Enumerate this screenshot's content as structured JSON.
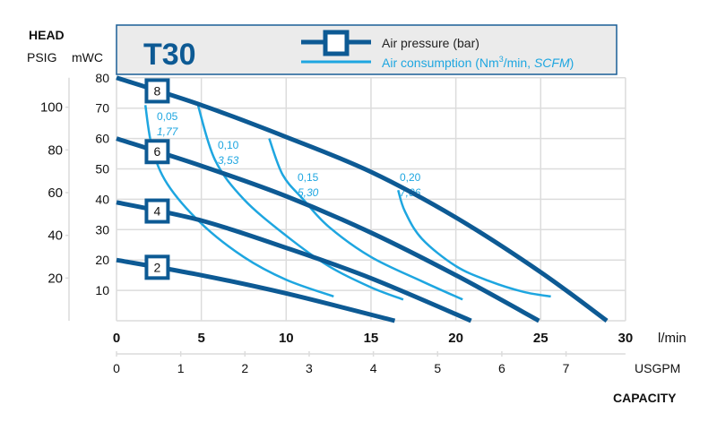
{
  "chart_data": {
    "type": "line",
    "title": "T30",
    "ylabel": "HEAD",
    "y_units": [
      "PSIG",
      "mWC"
    ],
    "xlabel": "CAPACITY",
    "x_units": [
      "l/min",
      "USGPM"
    ],
    "xlim": [
      0,
      30
    ],
    "ylim": [
      0,
      80
    ],
    "grid": true,
    "x_ticks": [
      "0",
      "5",
      "10",
      "15",
      "20",
      "25",
      "30"
    ],
    "y_ticks_mwc": [
      "10",
      "20",
      "30",
      "40",
      "50",
      "60",
      "70",
      "80"
    ],
    "y_ticks_psig": [
      "20",
      "40",
      "60",
      "80",
      "100"
    ],
    "x_ticks_usgpm": [
      "0",
      "1",
      "2",
      "3",
      "4",
      "5",
      "6",
      "7"
    ],
    "legend": {
      "placement": "top",
      "pressure_label": "Air pressure (bar)",
      "consumption_label_main": "Air consumption (Nm",
      "consumption_sup": "3",
      "consumption_label_mid": "/min, ",
      "consumption_label_italic": "SCFM",
      "consumption_label_end": ")"
    },
    "colors": {
      "pressure": "#0d5a94",
      "consumption": "#1ea6e0",
      "grid": "#dcdcdc",
      "legend_bg": "#ebebeb"
    },
    "pressure_series": [
      {
        "name": "8",
        "points": [
          [
            0,
            80
          ],
          [
            5,
            71
          ],
          [
            10,
            60.5
          ],
          [
            15,
            49
          ],
          [
            20,
            34
          ],
          [
            25,
            16
          ],
          [
            28.9,
            0
          ]
        ]
      },
      {
        "name": "6",
        "points": [
          [
            0,
            60
          ],
          [
            5,
            51
          ],
          [
            10,
            41
          ],
          [
            15,
            29
          ],
          [
            20,
            15
          ],
          [
            24.9,
            0
          ]
        ]
      },
      {
        "name": "4",
        "points": [
          [
            0,
            39
          ],
          [
            5,
            33
          ],
          [
            10,
            24
          ],
          [
            15,
            14
          ],
          [
            20.9,
            0
          ]
        ]
      },
      {
        "name": "2",
        "points": [
          [
            0,
            20
          ],
          [
            5,
            15
          ],
          [
            10,
            9
          ],
          [
            16.4,
            0
          ]
        ]
      }
    ],
    "consumption_series": [
      {
        "nm3": "0,05",
        "scfm": "1,77",
        "points": [
          [
            1.7,
            71
          ],
          [
            2.1,
            57
          ],
          [
            3,
            45
          ],
          [
            5,
            32
          ],
          [
            7.5,
            21
          ],
          [
            10,
            13.5
          ],
          [
            12.8,
            8
          ]
        ]
      },
      {
        "nm3": "0,10",
        "scfm": "3,53",
        "points": [
          [
            4.8,
            71
          ],
          [
            5.8,
            53
          ],
          [
            7.5,
            40
          ],
          [
            10,
            28
          ],
          [
            12.5,
            18
          ],
          [
            15,
            11
          ],
          [
            16.9,
            7
          ]
        ]
      },
      {
        "nm3": "0,15",
        "scfm": "5,30",
        "points": [
          [
            9,
            60
          ],
          [
            9.8,
            48
          ],
          [
            11,
            40
          ],
          [
            12.5,
            31
          ],
          [
            15,
            21
          ],
          [
            18,
            13
          ],
          [
            20.4,
            7
          ]
        ]
      },
      {
        "nm3": "0,20",
        "scfm": "7,06",
        "points": [
          [
            16.6,
            43
          ],
          [
            17,
            36
          ],
          [
            18,
            27
          ],
          [
            20,
            18
          ],
          [
            22,
            13
          ],
          [
            24,
            9.5
          ],
          [
            25.6,
            8
          ]
        ]
      }
    ]
  }
}
